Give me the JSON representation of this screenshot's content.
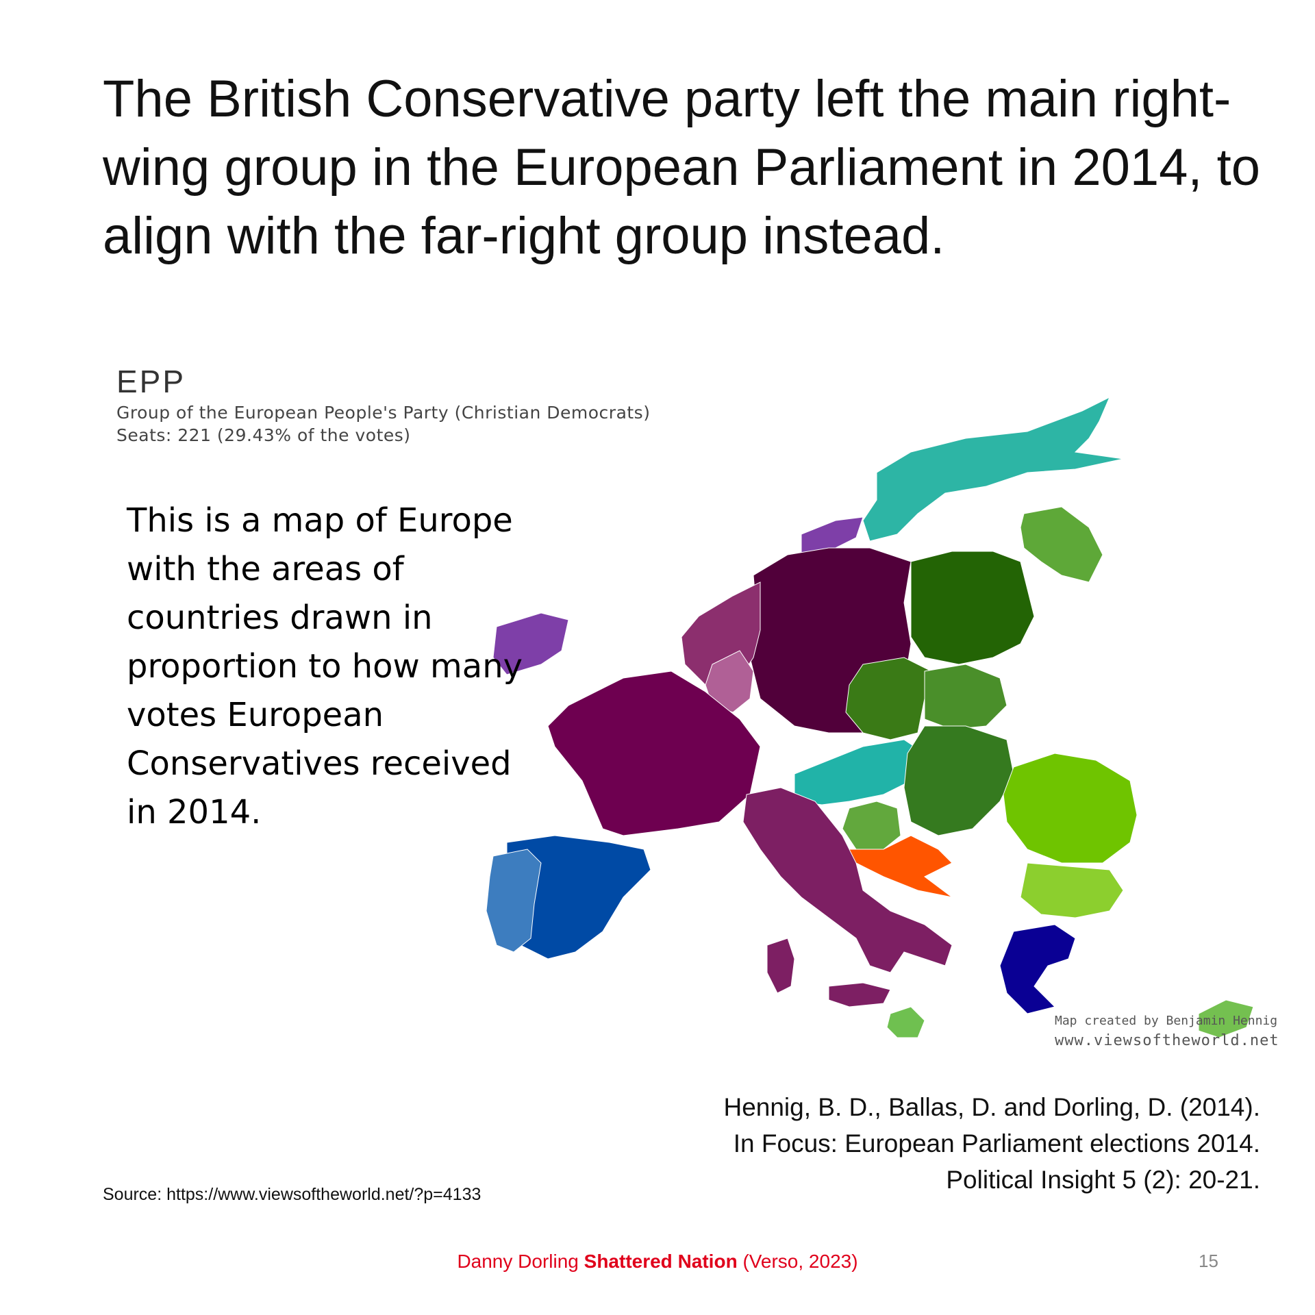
{
  "title": "The British Conservative party left the main right-wing group in the European Parliament in 2014, to align with the far-right group instead.",
  "map": {
    "legend": {
      "code": "EPP",
      "group": "Group of the European People's Party (Christian Democrats)",
      "seats": "Seats: 221 (29.43% of the votes)"
    },
    "overlay_text": "This is a map of Europe with the areas of countries drawn in proportion to how many votes European Conservatives received in 2014.",
    "credit_line1": "Map created by Benjamin Hennig",
    "credit_line2": "www.viewsoftheworld.net",
    "colors": {
      "germany": "#51003a",
      "france": "#6e0050",
      "benelux": "#8c2f6e",
      "luxembourg": "#b06096",
      "ireland": "#7e3fa8",
      "italy": "#7d1f63",
      "spain": "#004aa5",
      "portugal": "#3d7dbf",
      "greece": "#0a0094",
      "poland": "#236405",
      "czechia": "#3a7a16",
      "hungary": "#357a1f",
      "slovakia": "#4a8f2a",
      "romania": "#6fc400",
      "bulgaria": "#8ccf2e",
      "baltics": "#5ea838",
      "slovenia": "#62a83d",
      "croatia": "#ff5500",
      "austria": "#21b3a8",
      "nordic": "#2db5a5",
      "cyprus": "#74c050",
      "malta": "#6fc050"
    }
  },
  "citation": {
    "line1": "Hennig, B. D., Ballas, D. and Dorling, D. (2014).",
    "line2": "In Focus: European Parliament elections 2014.",
    "line3": "Political Insight 5 (2): 20-21."
  },
  "source": "Source: https://www.viewsoftheworld.net/?p=4133",
  "footer": {
    "author": "Danny Dorling",
    "book": "Shattered Nation",
    "publisher": "(Verso, 2023)",
    "page": "15"
  }
}
